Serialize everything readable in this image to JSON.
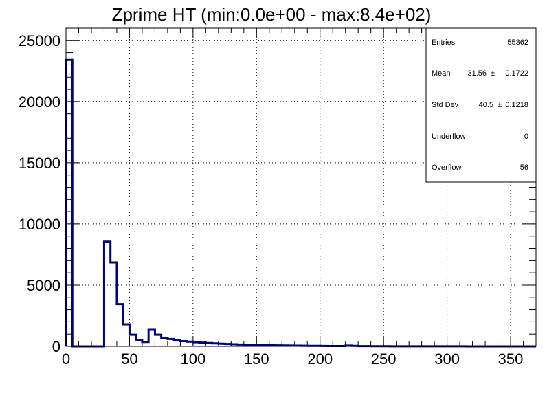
{
  "chart_data": {
    "type": "histogram",
    "title": "Zprime HT (min:0.0e+00 - max:8.4e+02)",
    "xlabel": "",
    "ylabel": "",
    "xlim": [
      0,
      370
    ],
    "ylim": [
      0,
      26000
    ],
    "grid": true,
    "line_color": "#000080",
    "bin_width": 5,
    "bins": [
      {
        "x": 0,
        "y": 23400
      },
      {
        "x": 5,
        "y": 0
      },
      {
        "x": 10,
        "y": 0
      },
      {
        "x": 15,
        "y": 0
      },
      {
        "x": 20,
        "y": 0
      },
      {
        "x": 25,
        "y": 0
      },
      {
        "x": 30,
        "y": 8550
      },
      {
        "x": 35,
        "y": 6850
      },
      {
        "x": 40,
        "y": 3450
      },
      {
        "x": 45,
        "y": 1800
      },
      {
        "x": 50,
        "y": 950
      },
      {
        "x": 55,
        "y": 500
      },
      {
        "x": 60,
        "y": 350
      },
      {
        "x": 65,
        "y": 1350
      },
      {
        "x": 70,
        "y": 950
      },
      {
        "x": 75,
        "y": 700
      },
      {
        "x": 80,
        "y": 600
      },
      {
        "x": 85,
        "y": 480
      },
      {
        "x": 90,
        "y": 420
      },
      {
        "x": 95,
        "y": 380
      },
      {
        "x": 100,
        "y": 330
      },
      {
        "x": 105,
        "y": 300
      },
      {
        "x": 110,
        "y": 270
      },
      {
        "x": 115,
        "y": 240
      },
      {
        "x": 120,
        "y": 210
      },
      {
        "x": 125,
        "y": 190
      },
      {
        "x": 130,
        "y": 170
      },
      {
        "x": 135,
        "y": 150
      },
      {
        "x": 140,
        "y": 140
      },
      {
        "x": 145,
        "y": 120
      },
      {
        "x": 150,
        "y": 110
      },
      {
        "x": 155,
        "y": 100
      },
      {
        "x": 160,
        "y": 90
      },
      {
        "x": 165,
        "y": 80
      },
      {
        "x": 170,
        "y": 70
      },
      {
        "x": 175,
        "y": 60
      },
      {
        "x": 180,
        "y": 55
      },
      {
        "x": 185,
        "y": 50
      },
      {
        "x": 190,
        "y": 45
      },
      {
        "x": 195,
        "y": 40
      },
      {
        "x": 200,
        "y": 35
      },
      {
        "x": 205,
        "y": 30
      },
      {
        "x": 210,
        "y": 30
      },
      {
        "x": 215,
        "y": 25
      },
      {
        "x": 220,
        "y": 60
      },
      {
        "x": 225,
        "y": 40
      },
      {
        "x": 230,
        "y": 20
      },
      {
        "x": 235,
        "y": 20
      },
      {
        "x": 240,
        "y": 15
      },
      {
        "x": 245,
        "y": 15
      },
      {
        "x": 250,
        "y": 15
      },
      {
        "x": 255,
        "y": 10
      },
      {
        "x": 260,
        "y": 10
      },
      {
        "x": 265,
        "y": 10
      },
      {
        "x": 270,
        "y": 10
      },
      {
        "x": 275,
        "y": 8
      },
      {
        "x": 280,
        "y": 8
      },
      {
        "x": 285,
        "y": 6
      },
      {
        "x": 290,
        "y": 6
      },
      {
        "x": 295,
        "y": 5
      },
      {
        "x": 300,
        "y": 5
      },
      {
        "x": 305,
        "y": 4
      },
      {
        "x": 310,
        "y": 4
      },
      {
        "x": 315,
        "y": 3
      },
      {
        "x": 320,
        "y": 3
      },
      {
        "x": 325,
        "y": 3
      },
      {
        "x": 330,
        "y": 2
      },
      {
        "x": 335,
        "y": 2
      },
      {
        "x": 340,
        "y": 2
      },
      {
        "x": 345,
        "y": 2
      },
      {
        "x": 350,
        "y": 1
      },
      {
        "x": 355,
        "y": 1
      },
      {
        "x": 360,
        "y": 1
      },
      {
        "x": 365,
        "y": 1
      }
    ],
    "x_ticks": [
      "0",
      "50",
      "100",
      "150",
      "200",
      "250",
      "300",
      "350"
    ],
    "y_ticks": [
      "0",
      "5000",
      "10000",
      "15000",
      "20000",
      "25000"
    ],
    "stats": {
      "entries_label": "Entries",
      "entries_value": "55362",
      "mean_label": "Mean",
      "mean_value": "31.56",
      "mean_pm": "±",
      "mean_err": "0.1722",
      "std_label": "Std Dev",
      "std_value": "40.5",
      "std_pm": "±",
      "std_err": "0.1218",
      "underflow_label": "Underflow",
      "underflow_value": "0",
      "overflow_label": "Overflow",
      "overflow_value": "56"
    }
  }
}
